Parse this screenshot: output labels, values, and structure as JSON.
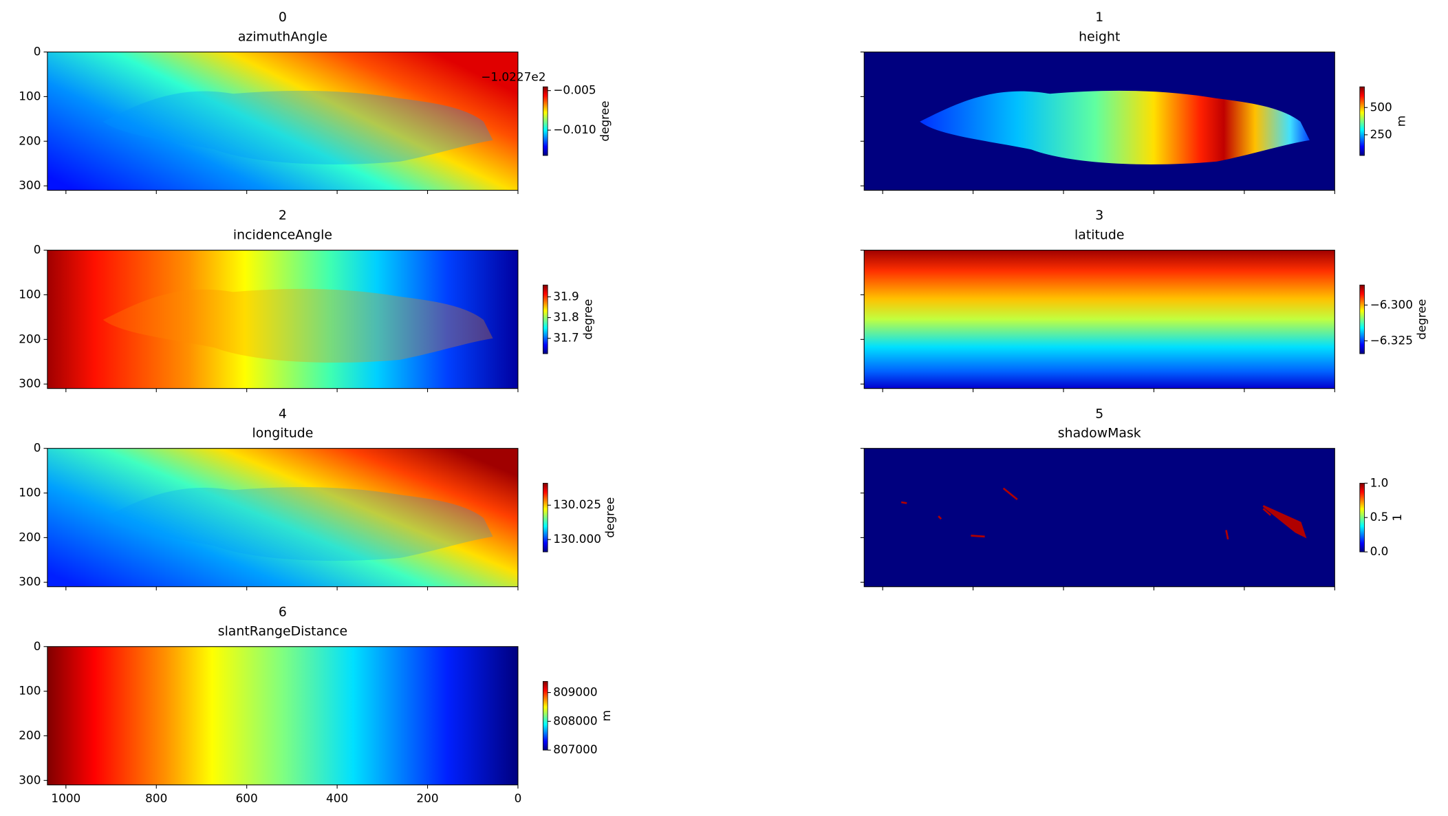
{
  "chart_data": [
    {
      "type": "image",
      "colormap": "jet",
      "title": "0",
      "subtitle": "azimuthAngle",
      "colorbar_label": "degree",
      "offset_label": "−1.0227e2",
      "clim": [
        -0.01321,
        -0.00452
      ],
      "cticks": [
        {
          "value": -0.005,
          "label": "−0.005"
        },
        {
          "value": -0.01,
          "label": "−0.010"
        }
      ],
      "xlim": [
        1041,
        0
      ],
      "ylim": [
        310,
        0
      ],
      "xticks": [
        1000,
        800,
        600,
        400,
        200,
        0
      ],
      "yticks": [
        0,
        100,
        200,
        300
      ],
      "x_tick_labels": false,
      "y_tick_labels": true
    },
    {
      "type": "image",
      "colormap": "jet",
      "title": "1",
      "subtitle": "height",
      "colorbar_label": "m",
      "clim": [
        60,
        690
      ],
      "cticks": [
        500,
        250
      ],
      "xlim": [
        1041,
        0
      ],
      "ylim": [
        310,
        0
      ],
      "xticks": [
        1000,
        800,
        600,
        400,
        200,
        0
      ],
      "yticks": [
        0,
        100,
        200,
        300
      ],
      "x_tick_labels": false,
      "y_tick_labels": false
    },
    {
      "type": "image",
      "colormap": "jet",
      "title": "2",
      "subtitle": "incidenceAngle",
      "colorbar_label": "degree",
      "clim": [
        31.626,
        31.957
      ],
      "cticks": [
        31.9,
        31.8,
        31.7
      ],
      "xlim": [
        1041,
        0
      ],
      "ylim": [
        310,
        0
      ],
      "xticks": [
        1000,
        800,
        600,
        400,
        200,
        0
      ],
      "yticks": [
        0,
        100,
        200,
        300
      ],
      "x_tick_labels": false,
      "y_tick_labels": true
    },
    {
      "type": "image",
      "colormap": "jet",
      "title": "3",
      "subtitle": "latitude",
      "colorbar_label": "degree",
      "clim": [
        -6.334,
        -6.286
      ],
      "cticks": [
        {
          "value": -6.3,
          "label": "−6.300"
        },
        {
          "value": -6.325,
          "label": "−6.325"
        }
      ],
      "xlim": [
        1041,
        0
      ],
      "ylim": [
        310,
        0
      ],
      "xticks": [
        1000,
        800,
        600,
        400,
        200,
        0
      ],
      "yticks": [
        0,
        100,
        200,
        300
      ],
      "x_tick_labels": false,
      "y_tick_labels": false
    },
    {
      "type": "image",
      "colormap": "jet",
      "title": "4",
      "subtitle": "longitude",
      "colorbar_label": "degree",
      "clim": [
        129.991,
        130.041
      ],
      "cticks": [
        130.025,
        {
          "value": 130,
          "label": "130.000"
        }
      ],
      "xlim": [
        1041,
        0
      ],
      "ylim": [
        310,
        0
      ],
      "xticks": [
        1000,
        800,
        600,
        400,
        200,
        0
      ],
      "yticks": [
        0,
        100,
        200,
        300
      ],
      "x_tick_labels": false,
      "y_tick_labels": true
    },
    {
      "type": "image",
      "colormap": "jet",
      "title": "5",
      "subtitle": "shadowMask",
      "colorbar_label": "1",
      "clim": [
        0,
        1
      ],
      "cticks": [
        {
          "value": 1,
          "label": "1.0"
        },
        0.5,
        {
          "value": 0,
          "label": "0.0"
        }
      ],
      "xlim": [
        1041,
        0
      ],
      "ylim": [
        310,
        0
      ],
      "xticks": [
        1000,
        800,
        600,
        400,
        200,
        0
      ],
      "yticks": [
        0,
        100,
        200,
        300
      ],
      "x_tick_labels": false,
      "y_tick_labels": false
    },
    {
      "type": "image",
      "colormap": "jet",
      "title": "6",
      "subtitle": "slantRangeDistance",
      "colorbar_label": "m",
      "clim": [
        807000,
        809387
      ],
      "cticks": [
        809000,
        808000,
        807000
      ],
      "xlim": [
        1041,
        0
      ],
      "ylim": [
        310,
        0
      ],
      "xticks": [
        1000,
        800,
        600,
        400,
        200,
        0
      ],
      "yticks": [
        0,
        100,
        200,
        300
      ],
      "x_tick_labels": true,
      "y_tick_labels": true
    }
  ]
}
